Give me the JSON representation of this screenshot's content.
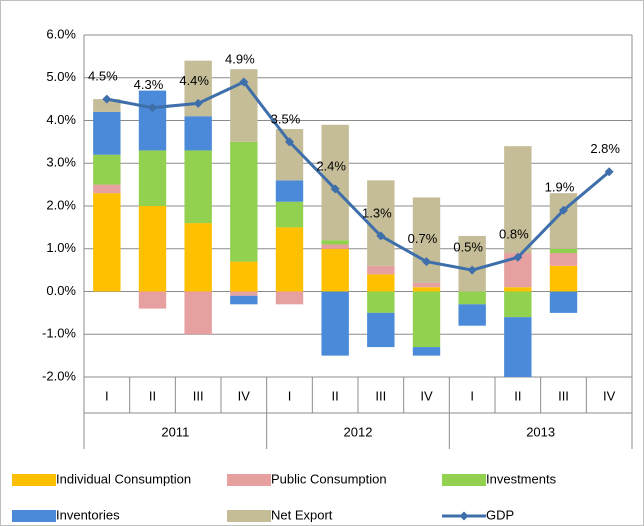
{
  "chart_data": {
    "type": "bar",
    "categories": [
      "I",
      "II",
      "III",
      "IV",
      "I",
      "II",
      "III",
      "IV",
      "I",
      "II",
      "III",
      "IV"
    ],
    "year_groups": [
      "2011",
      "2012",
      "2013"
    ],
    "ylim": [
      -2,
      6
    ],
    "yticks": [
      {
        "value": -2,
        "label": "-2.0%"
      },
      {
        "value": -1,
        "label": "-1.0%"
      },
      {
        "value": 0,
        "label": "0.0%"
      },
      {
        "value": 1,
        "label": "1.0%"
      },
      {
        "value": 2,
        "label": "2.0%"
      },
      {
        "value": 3,
        "label": "3.0%"
      },
      {
        "value": 4,
        "label": "4.0%"
      },
      {
        "value": 5,
        "label": "5.0%"
      },
      {
        "value": 6,
        "label": "6.0%"
      }
    ],
    "grid": true,
    "series": [
      {
        "name": "Individual Consumption",
        "color": "#ffc000",
        "values": [
          2.3,
          2.0,
          1.6,
          0.7,
          1.5,
          1.0,
          0.4,
          0.1,
          0,
          0.1,
          0.6,
          null
        ]
      },
      {
        "name": "Public Consumption",
        "color": "#e6a0a0",
        "values": [
          0.2,
          -0.4,
          -1.0,
          -0.1,
          -0.3,
          0.1,
          0.2,
          0.1,
          0,
          0.8,
          0.3,
          null
        ]
      },
      {
        "name": "Investments",
        "color": "#92d050",
        "values": [
          0.7,
          1.3,
          1.7,
          2.8,
          0.6,
          0.1,
          -0.5,
          -1.3,
          -0.3,
          -0.6,
          0.1,
          null
        ]
      },
      {
        "name": "Inventories",
        "color": "#4a8ad8",
        "values": [
          1.0,
          1.4,
          0.8,
          -0.2,
          0.5,
          -1.5,
          -0.8,
          -0.2,
          -0.5,
          -1.4,
          -0.5,
          null
        ]
      },
      {
        "name": "Net Export",
        "color": "#c4bd97",
        "values": [
          0.3,
          0,
          1.3,
          1.7,
          1.2,
          2.7,
          2.0,
          2.0,
          1.3,
          2.5,
          1.3,
          null
        ]
      },
      {
        "name": "GDP",
        "type": "line",
        "color": "#3f6faa",
        "values": [
          4.5,
          4.3,
          4.4,
          4.9,
          3.5,
          2.4,
          1.3,
          0.7,
          0.5,
          0.8,
          1.9,
          2.8
        ],
        "value_labels": [
          "4.5%",
          "4.3%",
          "4.4%",
          "4.9%",
          "3.5%",
          "2.4%",
          "1.3%",
          "0.7%",
          "0.5%",
          "0.8%",
          "1.9%",
          "2.8%"
        ]
      }
    ]
  }
}
